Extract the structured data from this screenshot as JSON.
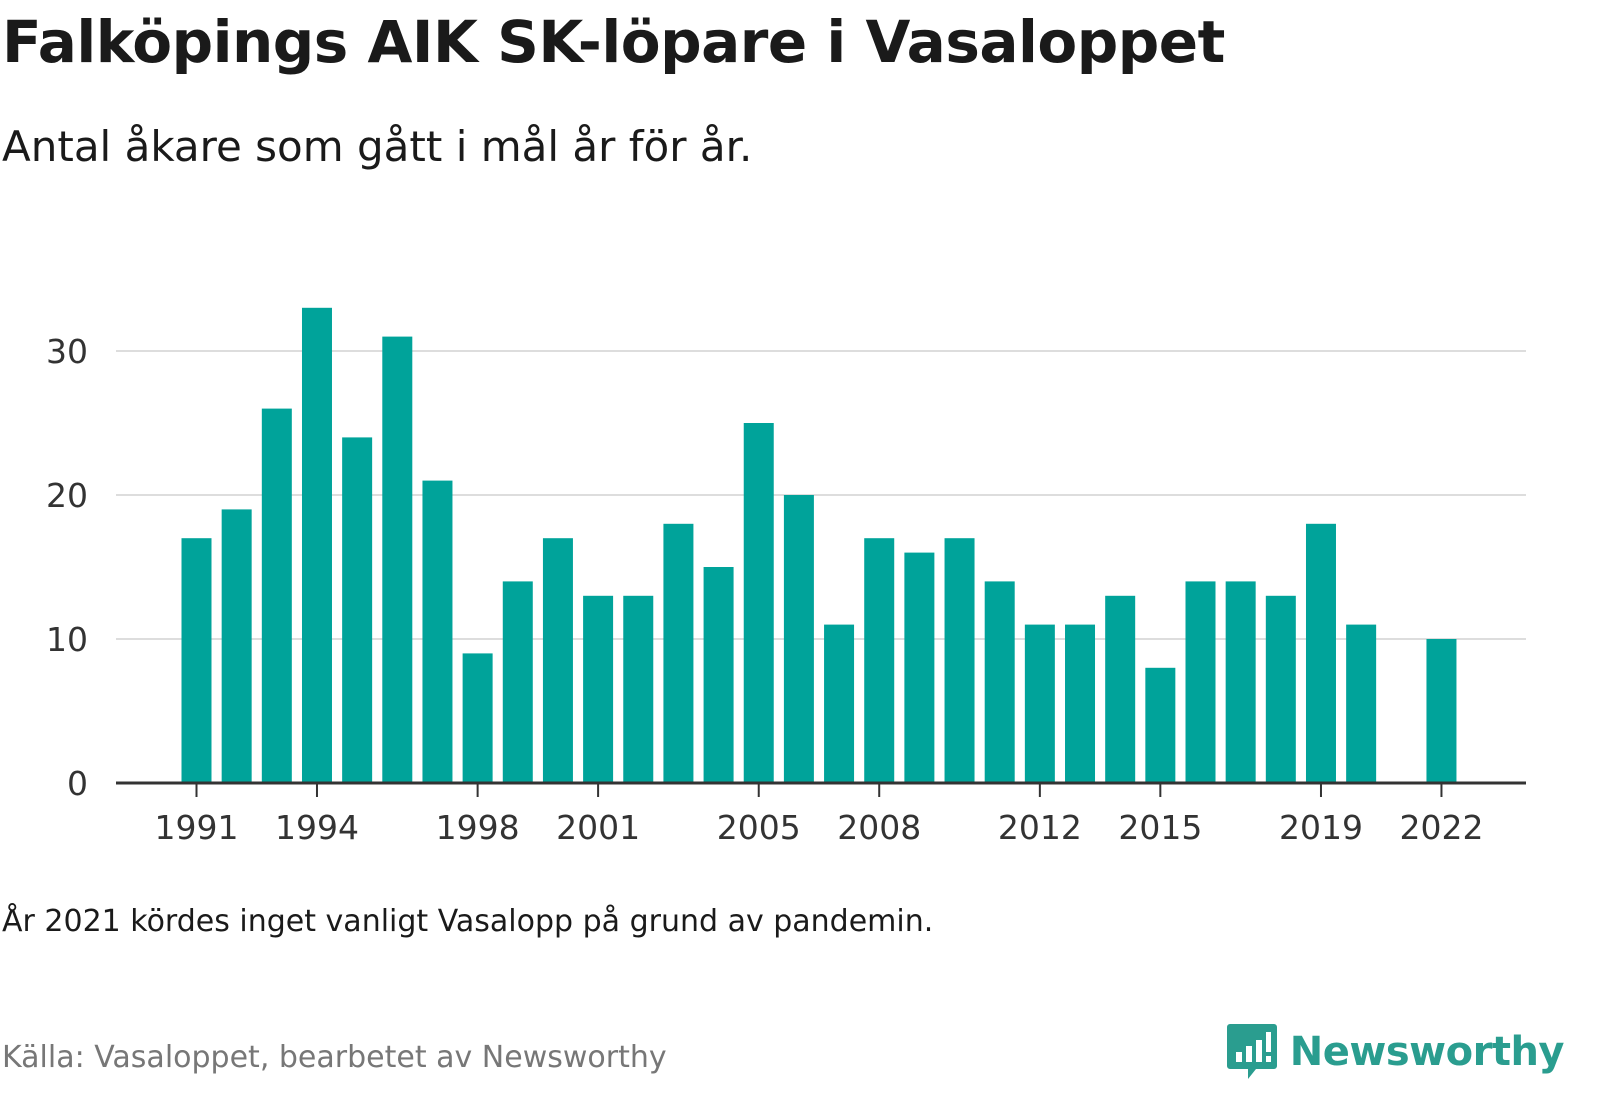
{
  "header": {
    "title": "Falköpings AIK SK-löpare i Vasaloppet",
    "subtitle": "Antal åkare som gått i mål år för år."
  },
  "footer": {
    "note": "År 2021 kördes inget vanligt Vasalopp på grund av pandemin.",
    "source": "Källa: Vasaloppet, bearbetet av Newsworthy",
    "logo_text": "Newsworthy",
    "logo_icon": "bar-chart-speech-bubble-icon"
  },
  "colors": {
    "bar": "#00a39a",
    "grid": "#dddddd",
    "axis": "#333333",
    "logo": "#2a9d8f"
  },
  "chart_data": {
    "type": "bar",
    "title": "Falköpings AIK SK-löpare i Vasaloppet",
    "subtitle": "Antal åkare som gått i mål år för år.",
    "xlabel": "",
    "ylabel": "",
    "categories": [
      1991,
      1992,
      1993,
      1994,
      1995,
      1996,
      1997,
      1998,
      1999,
      2000,
      2001,
      2002,
      2003,
      2004,
      2005,
      2006,
      2007,
      2008,
      2009,
      2010,
      2011,
      2012,
      2013,
      2014,
      2015,
      2016,
      2017,
      2018,
      2019,
      2020,
      2021,
      2022
    ],
    "values": [
      17,
      19,
      26,
      33,
      24,
      31,
      21,
      9,
      14,
      17,
      13,
      13,
      18,
      15,
      25,
      20,
      11,
      17,
      16,
      17,
      14,
      11,
      11,
      13,
      8,
      14,
      14,
      13,
      18,
      11,
      null,
      10
    ],
    "x_tick_labels": [
      "1991",
      "1994",
      "1998",
      "2001",
      "2005",
      "2008",
      "2012",
      "2015",
      "2019",
      "2022"
    ],
    "y_ticks": [
      0,
      10,
      20,
      30
    ],
    "ylim": [
      0,
      33
    ],
    "grid": true,
    "legend": "none"
  }
}
